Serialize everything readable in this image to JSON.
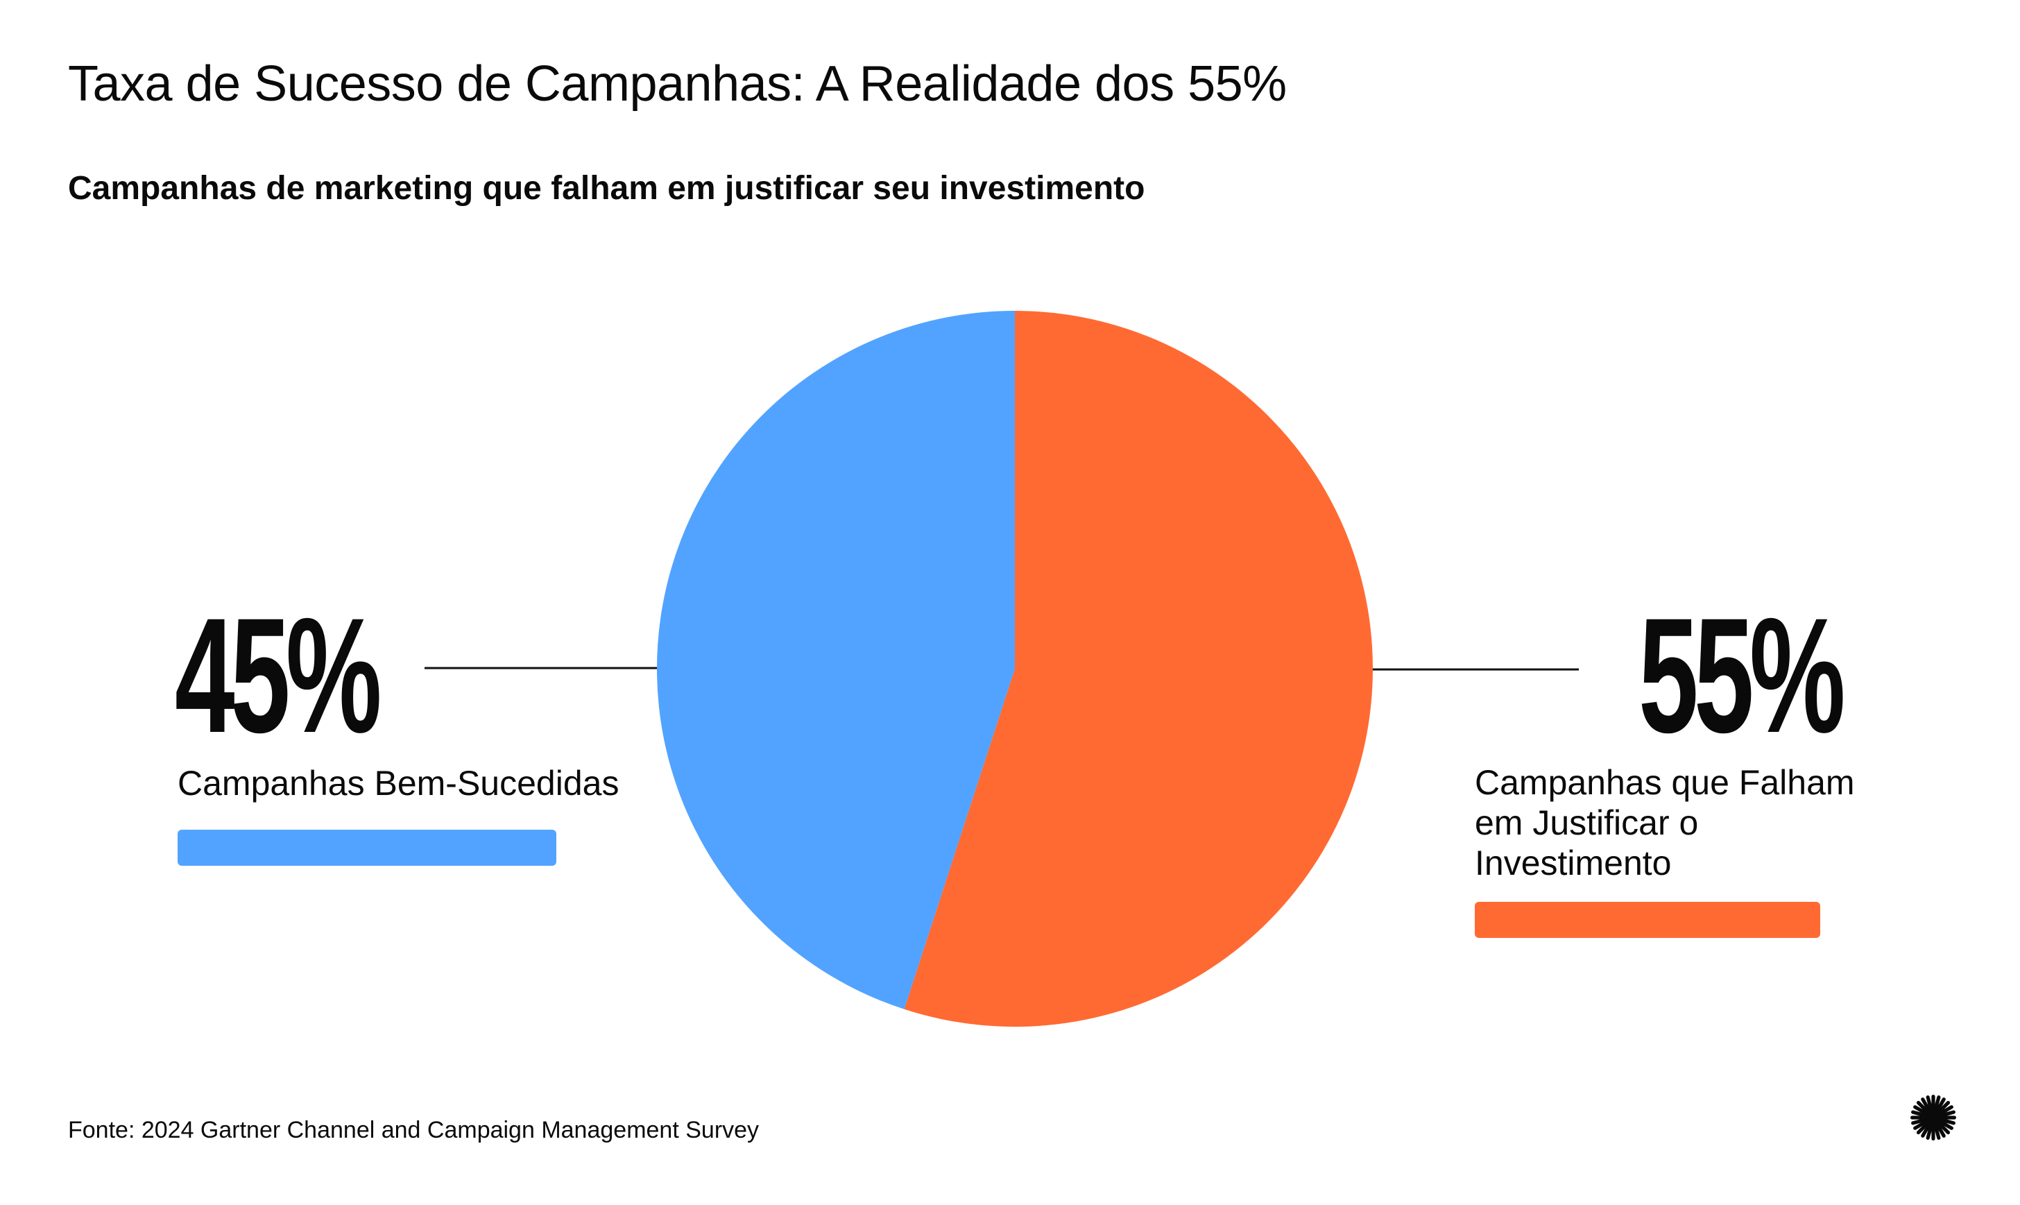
{
  "header": {
    "title": "Taxa de Sucesso de Campanhas: A Realidade dos 55%",
    "subtitle": "Campanhas de marketing que falham em justificar seu investimento"
  },
  "chart_data": {
    "type": "pie",
    "title": "Taxa de Sucesso de Campanhas: A Realidade dos 55%",
    "subtitle": "Campanhas de marketing que falham em justificar seu investimento",
    "slices": [
      {
        "label": "Campanhas que Falham em Justificar o Investimento",
        "value": 55,
        "display": "55%",
        "color": "#FF6A33"
      },
      {
        "label": "Campanhas Bem-Sucedidas",
        "value": 45,
        "display": "45%",
        "color": "#52A3FF"
      }
    ]
  },
  "left_callout": {
    "value": "45%",
    "label": "Campanhas Bem-Sucedidas"
  },
  "right_callout": {
    "value": "55%",
    "label": "Campanhas que Falham em Justificar o Investimento"
  },
  "footer": {
    "source": "Fonte: 2024 Gartner Channel and Campaign Management Survey",
    "logo_icon": "starburst-icon"
  }
}
